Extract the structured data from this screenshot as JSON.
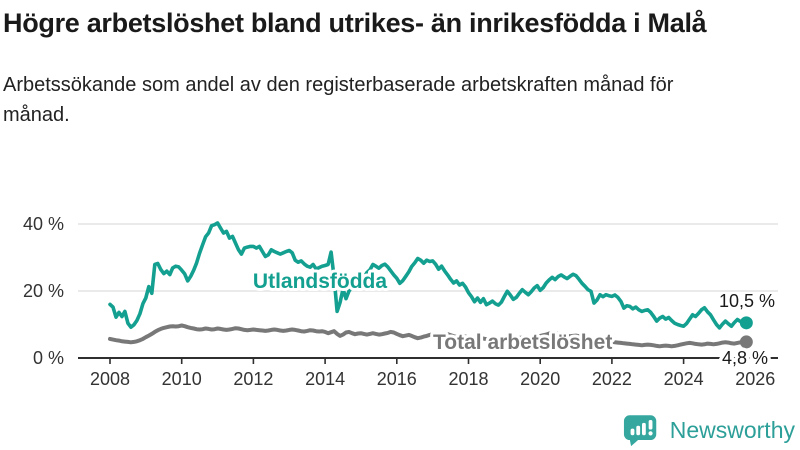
{
  "header": {
    "title": "Högre arbetslöshet bland utrikes- än inrikesfödda i Malå",
    "subtitle": "Arbetssökande som andel av den registerbaserade arbetskraften månad för månad."
  },
  "chart_data": {
    "type": "line",
    "title": "Högre arbetslöshet bland utrikes- än inrikesfödda i Malå",
    "subtitle": "Arbetssökande som andel av den registerbaserade arbetskraften månad för månad.",
    "x_start": "2008-01",
    "x_end": "2025-10",
    "points_per_year": 12,
    "xlim": [
      2007.1,
      2026.6
    ],
    "ylim": [
      0,
      42
    ],
    "grid": "horizontal-light",
    "legend_position": "inline-labels",
    "x_tick_years": [
      2008,
      2010,
      2012,
      2014,
      2016,
      2018,
      2020,
      2022,
      2024,
      2026
    ],
    "y_ticks": [
      {
        "value": 0,
        "label": "0 %"
      },
      {
        "value": 20,
        "label": "20 %"
      },
      {
        "value": 40,
        "label": "40 %"
      }
    ],
    "colors": {
      "utlandsfodda": "#14a090",
      "total": "#787878",
      "axis": "#2f2f2f",
      "gridline": "#e3e3e3",
      "tick_text": "#333333",
      "end_label_text": "#1a1a1a"
    },
    "series": [
      {
        "name": "Utlandsfödda",
        "color": "#14a090",
        "end_label": "10,5 %",
        "end_value": 10.5,
        "values": [
          16.0,
          15.2,
          12.2,
          13.6,
          12.4,
          13.9,
          10.4,
          9.2,
          9.9,
          11.2,
          13.2,
          16.2,
          17.9,
          21.3,
          19.3,
          27.9,
          28.2,
          26.4,
          25.2,
          25.9,
          24.9,
          26.9,
          27.4,
          27.2,
          26.2,
          25.1,
          23.0,
          24.4,
          26.2,
          28.4,
          31.3,
          33.8,
          36.2,
          37.3,
          39.5,
          39.8,
          40.3,
          38.8,
          37.3,
          37.8,
          35.8,
          36.3,
          34.3,
          32.3,
          31.0,
          32.8,
          33.1,
          33.3,
          33.3,
          32.8,
          33.3,
          31.8,
          30.3,
          30.8,
          32.3,
          31.8,
          31.4,
          31.0,
          31.4,
          31.8,
          32.1,
          31.4,
          29.2,
          28.6,
          29.0,
          28.1,
          27.4,
          27.1,
          27.9,
          26.6,
          27.0,
          27.4,
          27.6,
          27.9,
          31.6,
          24.0,
          13.9,
          16.5,
          20.6,
          17.7,
          20.0,
          21.2,
          20.6,
          21.4,
          22.5,
          24.0,
          25.5,
          26.3,
          27.9,
          27.4,
          26.8,
          27.6,
          28.0,
          27.2,
          26.0,
          24.8,
          23.8,
          22.3,
          23.1,
          24.4,
          25.7,
          27.3,
          28.4,
          29.7,
          29.2,
          28.3,
          29.2,
          28.8,
          29.0,
          28.0,
          26.5,
          27.4,
          26.0,
          24.8,
          23.5,
          22.4,
          23.0,
          21.8,
          22.3,
          21.2,
          19.5,
          18.3,
          16.8,
          17.9,
          16.6,
          17.7,
          15.9,
          16.4,
          17.0,
          16.2,
          15.8,
          16.7,
          18.4,
          19.9,
          18.8,
          17.5,
          18.1,
          19.3,
          20.4,
          19.6,
          18.9,
          19.8,
          20.9,
          21.6,
          20.2,
          21.0,
          22.4,
          23.3,
          24.1,
          23.4,
          24.3,
          24.8,
          24.2,
          23.7,
          24.4,
          25.0,
          24.6,
          23.5,
          22.3,
          21.4,
          20.4,
          19.9,
          16.4,
          17.3,
          18.9,
          18.3,
          18.9,
          18.6,
          18.4,
          18.8,
          18.1,
          16.9,
          14.9,
          15.6,
          15.4,
          14.7,
          15.2,
          14.4,
          13.9,
          14.2,
          14.4,
          13.6,
          12.4,
          11.0,
          11.9,
          12.4,
          11.6,
          12.1,
          11.2,
          10.4,
          10.0,
          9.7,
          9.5,
          10.3,
          11.6,
          12.9,
          12.4,
          13.3,
          14.4,
          15.0,
          13.8,
          12.9,
          11.4,
          10.0,
          9.0,
          10.1,
          11.0,
          10.2,
          9.5,
          10.6,
          11.5,
          10.9,
          10.2,
          10.5
        ]
      },
      {
        "name": "Total arbetslöshet",
        "color": "#787878",
        "end_label": "4,8 %",
        "end_value": 4.8,
        "values": [
          5.7,
          5.5,
          5.3,
          5.2,
          5.0,
          4.9,
          4.8,
          4.7,
          4.8,
          5.0,
          5.3,
          5.7,
          6.2,
          6.7,
          7.2,
          7.8,
          8.3,
          8.7,
          9.0,
          9.2,
          9.4,
          9.5,
          9.4,
          9.5,
          9.7,
          9.5,
          9.2,
          9.0,
          8.8,
          8.6,
          8.5,
          8.6,
          8.8,
          8.7,
          8.5,
          8.6,
          8.8,
          8.7,
          8.5,
          8.4,
          8.5,
          8.7,
          8.9,
          8.8,
          8.6,
          8.4,
          8.3,
          8.4,
          8.5,
          8.4,
          8.3,
          8.2,
          8.1,
          8.2,
          8.4,
          8.5,
          8.4,
          8.2,
          8.1,
          8.2,
          8.4,
          8.5,
          8.4,
          8.2,
          8.0,
          7.9,
          8.1,
          8.3,
          8.2,
          8.0,
          7.9,
          8.0,
          7.8,
          7.4,
          7.7,
          8.0,
          7.2,
          6.6,
          7.0,
          7.6,
          7.8,
          7.4,
          7.1,
          7.3,
          7.4,
          7.2,
          7.0,
          7.2,
          7.4,
          7.2,
          7.0,
          7.1,
          7.3,
          7.5,
          7.8,
          7.6,
          7.2,
          6.8,
          6.5,
          6.7,
          6.9,
          6.6,
          6.2,
          5.9,
          6.1,
          6.4,
          6.6,
          6.9,
          7.1,
          7.3,
          7.0,
          6.8,
          6.9,
          7.1,
          6.8,
          6.5,
          6.3,
          6.4,
          6.6,
          6.4,
          6.2,
          6.0,
          5.8,
          5.9,
          6.0,
          5.8,
          5.6,
          5.7,
          5.9,
          5.8,
          5.6,
          5.7,
          5.9,
          6.0,
          5.8,
          5.7,
          5.8,
          6.0,
          6.1,
          6.0,
          5.9,
          6.0,
          6.2,
          6.4,
          6.6,
          6.8,
          7.0,
          7.3,
          7.5,
          7.4,
          7.2,
          7.0,
          6.8,
          6.6,
          6.5,
          6.6,
          6.7,
          6.5,
          6.3,
          6.1,
          5.9,
          5.7,
          5.5,
          5.3,
          5.2,
          5.1,
          5.0,
          4.9,
          4.8,
          4.7,
          4.6,
          4.5,
          4.4,
          4.3,
          4.2,
          4.1,
          4.0,
          3.9,
          3.8,
          3.9,
          4.0,
          3.9,
          3.8,
          3.6,
          3.5,
          3.6,
          3.7,
          3.6,
          3.5,
          3.6,
          3.8,
          4.0,
          4.2,
          4.4,
          4.5,
          4.4,
          4.2,
          4.1,
          4.0,
          4.1,
          4.3,
          4.2,
          4.1,
          4.2,
          4.4,
          4.6,
          4.7,
          4.6,
          4.4,
          4.3,
          4.5,
          4.7,
          4.8,
          4.8
        ]
      }
    ]
  },
  "footer": {
    "brand": "Newsworthy",
    "logo_color": "#35a79f"
  }
}
